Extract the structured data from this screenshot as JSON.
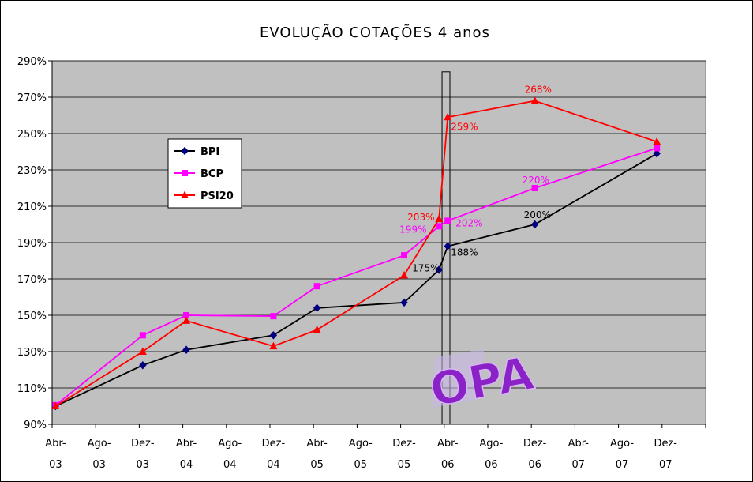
{
  "chart_data": {
    "type": "line",
    "title": "EVOLUÇÃO COTAÇÕES 4 anos",
    "ylim": [
      90,
      290
    ],
    "yticks": [
      "90%",
      "110%",
      "130%",
      "150%",
      "170%",
      "190%",
      "210%",
      "230%",
      "250%",
      "270%",
      "290%"
    ],
    "ytick_values": [
      90,
      110,
      130,
      150,
      170,
      190,
      210,
      230,
      250,
      270,
      290
    ],
    "categories": [
      {
        "top": "Abr-",
        "bottom": "03"
      },
      {
        "top": "Ago-",
        "bottom": "03"
      },
      {
        "top": "Dez-",
        "bottom": "03"
      },
      {
        "top": "Abr-",
        "bottom": "04"
      },
      {
        "top": "Ago-",
        "bottom": "04"
      },
      {
        "top": "Dez-",
        "bottom": "04"
      },
      {
        "top": "Abr-",
        "bottom": "05"
      },
      {
        "top": "Ago-",
        "bottom": "05"
      },
      {
        "top": "Dez-",
        "bottom": "05"
      },
      {
        "top": "Abr-",
        "bottom": "06"
      },
      {
        "top": "Ago-",
        "bottom": "06"
      },
      {
        "top": "Dez-",
        "bottom": "06"
      },
      {
        "top": "Abr-",
        "bottom": "07"
      },
      {
        "top": "Ago-",
        "bottom": "07"
      },
      {
        "top": "Dez-",
        "bottom": "07"
      }
    ],
    "grid": true,
    "legend_position": "left",
    "plot_background": "#c0c0c0",
    "series": [
      {
        "name": "BPI",
        "color": "#000000",
        "marker": "diamond",
        "marker_color": "#000080",
        "points": [
          {
            "x": 0,
            "y": 100
          },
          {
            "x": 2,
            "y": 122.5
          },
          {
            "x": 3,
            "y": 131
          },
          {
            "x": 5,
            "y": 139
          },
          {
            "x": 6,
            "y": 154
          },
          {
            "x": 8,
            "y": 157
          },
          {
            "x": 8.8,
            "y": 175,
            "label": "175%"
          },
          {
            "x": 9,
            "y": 188,
            "label": "188%"
          },
          {
            "x": 11,
            "y": 200,
            "label": "200%"
          },
          {
            "x": 13.8,
            "y": 239
          }
        ]
      },
      {
        "name": "BCP",
        "color": "#ff00ff",
        "marker": "square",
        "marker_color": "#ff00ff",
        "points": [
          {
            "x": 0,
            "y": 100.5
          },
          {
            "x": 2,
            "y": 139
          },
          {
            "x": 3,
            "y": 150
          },
          {
            "x": 5,
            "y": 149.5
          },
          {
            "x": 6,
            "y": 166
          },
          {
            "x": 8,
            "y": 183
          },
          {
            "x": 8.8,
            "y": 199,
            "label": "199%"
          },
          {
            "x": 9,
            "y": 202,
            "label": "202%"
          },
          {
            "x": 11,
            "y": 220,
            "label": "220%"
          },
          {
            "x": 13.8,
            "y": 242
          }
        ]
      },
      {
        "name": "PSI20",
        "color": "#ff0000",
        "marker": "triangle",
        "marker_color": "#ff0000",
        "points": [
          {
            "x": 0,
            "y": 100
          },
          {
            "x": 2,
            "y": 130
          },
          {
            "x": 3,
            "y": 147
          },
          {
            "x": 5,
            "y": 133
          },
          {
            "x": 6,
            "y": 142
          },
          {
            "x": 8,
            "y": 172
          },
          {
            "x": 8.8,
            "y": 203,
            "label": "203%"
          },
          {
            "x": 9,
            "y": 259,
            "label": "259%"
          },
          {
            "x": 11,
            "y": 268,
            "label": "268%"
          },
          {
            "x": 13.8,
            "y": 245.5
          }
        ]
      }
    ],
    "annotation": {
      "text": "OPA",
      "color": "#8b22c8"
    }
  }
}
